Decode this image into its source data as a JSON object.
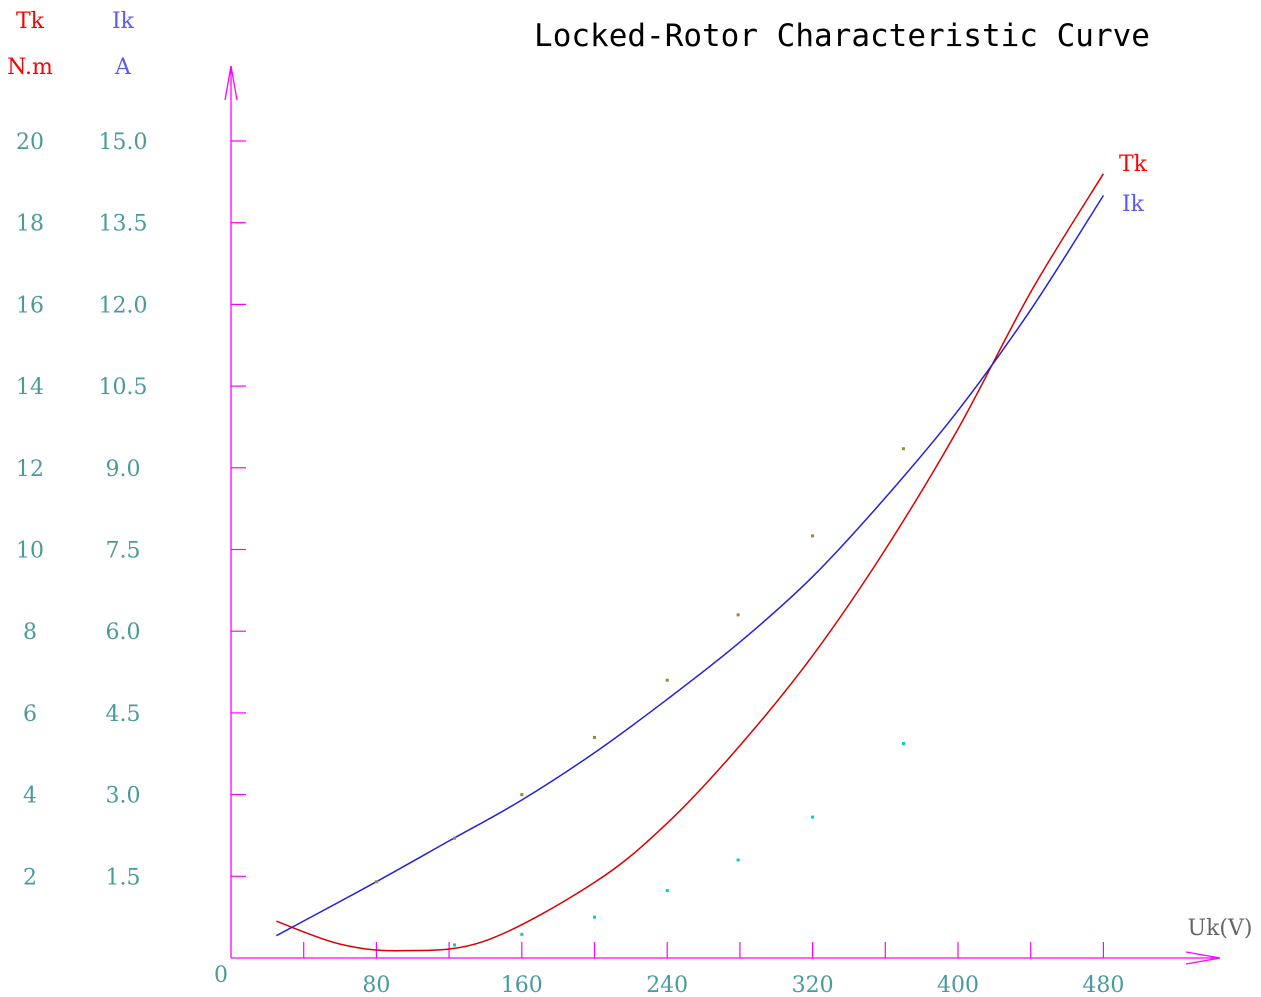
{
  "chart_data": {
    "type": "line",
    "title": "Locked-Rotor Characteristic Curve",
    "xlabel": "Uk(V)",
    "origin_label": "0",
    "xlim": [
      0,
      540
    ],
    "x_ticks": [
      40,
      80,
      120,
      160,
      200,
      240,
      280,
      320,
      360,
      400,
      440,
      480
    ],
    "x_tick_labels": [
      "80",
      "160",
      "240",
      "320",
      "400",
      "480"
    ],
    "x_tick_label_values": [
      80,
      160,
      240,
      320,
      400,
      480
    ],
    "left_axis": {
      "name": "Tk",
      "unit": "N.m",
      "ylim": [
        0,
        20
      ],
      "tick_values": [
        2,
        4,
        6,
        8,
        10,
        12,
        14,
        16,
        18,
        20
      ],
      "tick_labels": [
        "2",
        "4",
        "6",
        "8",
        "10",
        "12",
        "14",
        "16",
        "18",
        "20"
      ]
    },
    "right_axis": {
      "name": "Ik",
      "unit": "A",
      "ylim": [
        0,
        15
      ],
      "tick_values": [
        1.5,
        3.0,
        4.5,
        6.0,
        7.5,
        9.0,
        10.5,
        12.0,
        13.5,
        15.0
      ],
      "tick_labels": [
        "1.5",
        "3.0",
        "4.5",
        "6.0",
        "7.5",
        "9.0",
        "10.5",
        "12.0",
        "13.5",
        "15.0"
      ]
    },
    "grid": false,
    "legend": "inline at right end of curves",
    "colors": {
      "axis": "#ff00ff",
      "tick_label": "#4a9a9a",
      "tk_label": "#ff0000",
      "ik_label": "#5a5aee",
      "tk_curve": "#dd0000",
      "ik_curve": "#2222dd",
      "title": "#000000",
      "xlabel": "#666666",
      "marker_cyan": "#00cccc",
      "marker_olive": "#998833"
    },
    "series": [
      {
        "name": "Tk",
        "axis": "left",
        "color": "#dd0000",
        "x": [
          25,
          60,
          94,
          140,
          200,
          240,
          280,
          320,
          360,
          400,
          440,
          480
        ],
        "y": [
          0.9,
          0.34,
          0.18,
          0.42,
          1.85,
          3.3,
          5.2,
          7.4,
          10.0,
          12.95,
          16.3,
          19.2
        ]
      },
      {
        "name": "Ik",
        "axis": "right",
        "color": "#2222dd",
        "x": [
          25,
          40,
          80,
          120,
          160,
          200,
          240,
          280,
          320,
          360,
          400,
          440,
          480
        ],
        "y": [
          0.41,
          0.68,
          1.4,
          2.15,
          2.9,
          3.77,
          4.75,
          5.8,
          7.0,
          8.45,
          10.05,
          11.9,
          14.0
        ]
      }
    ],
    "tk_markers": {
      "x": [
        123,
        160,
        200,
        240,
        279,
        320,
        370
      ],
      "y": [
        0.32,
        0.58,
        1.0,
        1.65,
        2.4,
        3.45,
        5.25
      ]
    },
    "ik_markers": {
      "x": [
        80,
        123,
        160,
        200,
        240,
        279,
        320,
        370
      ],
      "y": [
        1.4,
        2.2,
        3.0,
        4.05,
        5.1,
        6.3,
        7.75,
        9.35
      ]
    }
  }
}
